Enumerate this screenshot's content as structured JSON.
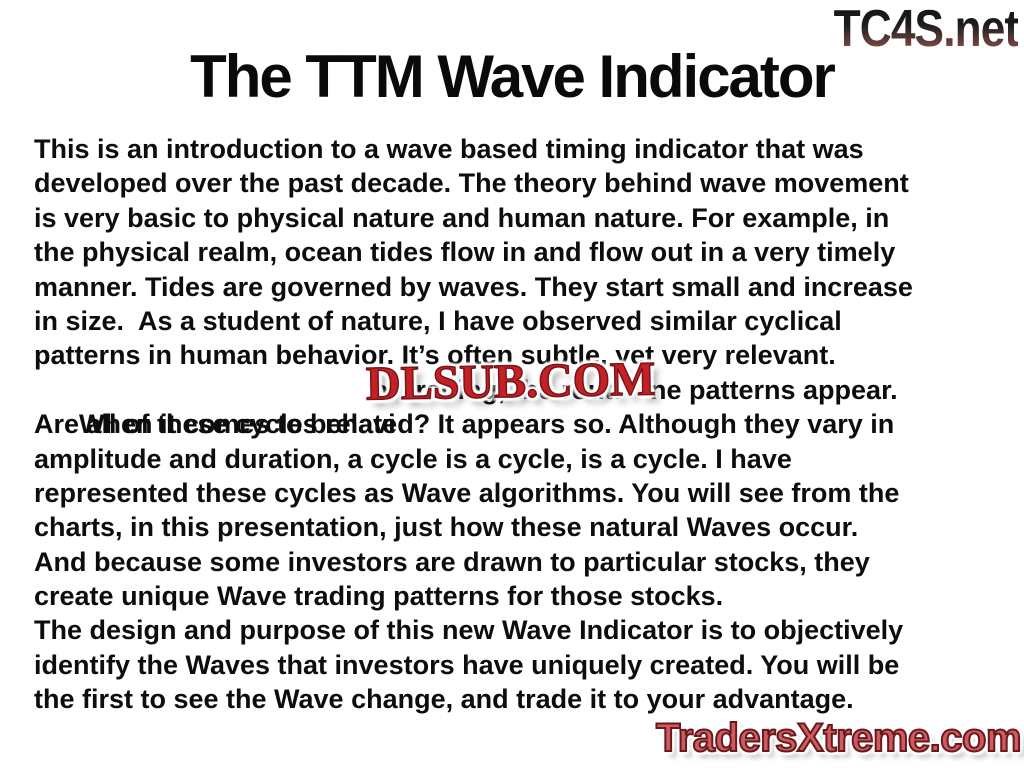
{
  "title": "The TTM Wave Indicator",
  "watermarks": {
    "top_right": "TC4S.net",
    "center": "DLSUB.COM",
    "bottom_right": "TradersXtreme.com"
  },
  "body": {
    "lines": [
      "This is an introduction to a wave based timing indicator that was",
      "developed over the past decade. The theory behind wave movement",
      "is very basic to physical nature and human nature. For example, in",
      "the physical realm, ocean tides flow in and flow out in a very timely",
      "manner. Tides are governed by waves. They start small and increase",
      "in size.  As a student of nature, I have observed similar cyclical",
      "patterns in human behavior. It’s often subtle, yet very relevant.",
      {
        "before": "When it comes to behavi",
        "hidden": "or trading, the routi",
        "after": "ne patterns appear."
      },
      "Are all of these cycles related? It appears so. Although they vary in",
      "amplitude and duration, a cycle is a cycle, is a cycle. I have",
      "represented these cycles as Wave algorithms. You will see from the",
      "charts, in this presentation, just how these natural Waves occur.",
      "And because some investors are drawn to particular stocks, they",
      "create unique Wave trading patterns for those stocks.",
      "The design and purpose of this new Wave Indicator is to objectively",
      "identify the Waves that investors have uniquely created. You will be",
      "the first to see the Wave change, and trade it to your advantage."
    ]
  },
  "colors": {
    "background": "#ffffff",
    "body_text": "#0d0d0d",
    "dlsub_red": "#c42127",
    "dlsub_outline": "#7a1216",
    "tradersxtreme_red": "#cd5c61",
    "tradersxtreme_outline": "#6a181b",
    "tc4s_gradient_top": "#161616",
    "tc4s_gradient_bottom": "#9c6f68"
  }
}
